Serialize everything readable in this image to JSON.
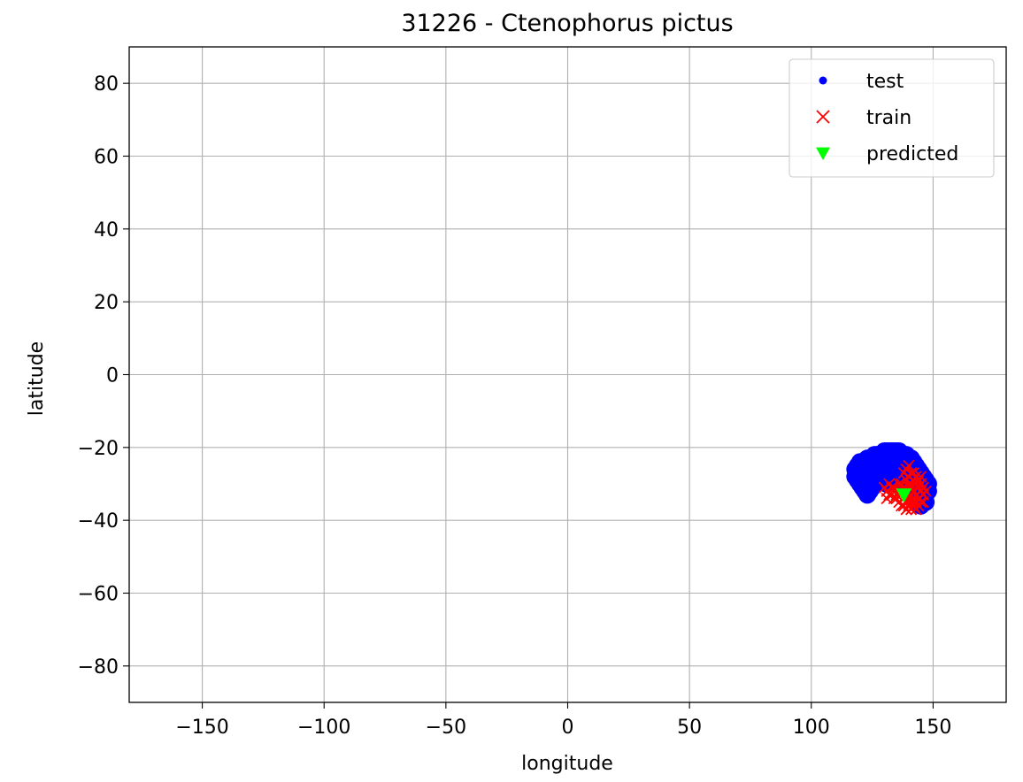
{
  "chart_data": {
    "type": "scatter",
    "title": "31226 - Ctenophorus pictus",
    "xlabel": "longitude",
    "ylabel": "latitude",
    "xlim": [
      -180,
      180
    ],
    "ylim": [
      -90,
      90
    ],
    "xticks": [
      -150,
      -100,
      -50,
      0,
      50,
      100,
      150
    ],
    "xtick_labels": [
      "−150",
      "−100",
      "−50",
      "0",
      "50",
      "100",
      "150"
    ],
    "yticks": [
      80,
      60,
      40,
      20,
      0,
      -20,
      -40,
      -60,
      -80
    ],
    "ytick_labels": [
      "80",
      "60",
      "40",
      "20",
      "0",
      "−20",
      "−40",
      "−60",
      "−80"
    ],
    "grid": true,
    "legend_position": "top-right",
    "series": [
      {
        "name": "test",
        "marker": "dot",
        "color": "#0000ff",
        "points": [
          [
            118,
            -26
          ],
          [
            118,
            -28
          ],
          [
            119,
            -25
          ],
          [
            119,
            -29
          ],
          [
            120,
            -24
          ],
          [
            120,
            -30
          ],
          [
            121,
            -24
          ],
          [
            121,
            -31
          ],
          [
            122,
            -24
          ],
          [
            122,
            -32
          ],
          [
            123,
            -23
          ],
          [
            123,
            -33
          ],
          [
            124,
            -23
          ],
          [
            124,
            -32
          ],
          [
            125,
            -23
          ],
          [
            125,
            -31
          ],
          [
            126,
            -22
          ],
          [
            126,
            -30
          ],
          [
            127,
            -22
          ],
          [
            127,
            -29
          ],
          [
            128,
            -22
          ],
          [
            128,
            -28
          ],
          [
            129,
            -22
          ],
          [
            129,
            -27
          ],
          [
            130,
            -21
          ],
          [
            130,
            -26
          ],
          [
            131,
            -21
          ],
          [
            131,
            -25
          ],
          [
            132,
            -21
          ],
          [
            132,
            -24
          ],
          [
            133,
            -21
          ],
          [
            133,
            -23
          ],
          [
            134,
            -21
          ],
          [
            134,
            -22
          ],
          [
            135,
            -21
          ],
          [
            135,
            -23
          ],
          [
            136,
            -21
          ],
          [
            136,
            -24
          ],
          [
            137,
            -22
          ],
          [
            137,
            -25
          ],
          [
            138,
            -22
          ],
          [
            138,
            -26
          ],
          [
            139,
            -22
          ],
          [
            139,
            -27
          ],
          [
            140,
            -23
          ],
          [
            140,
            -28
          ],
          [
            141,
            -23
          ],
          [
            141,
            -29
          ],
          [
            142,
            -24
          ],
          [
            142,
            -30
          ],
          [
            143,
            -25
          ],
          [
            143,
            -31
          ],
          [
            144,
            -26
          ],
          [
            144,
            -32
          ],
          [
            145,
            -27
          ],
          [
            145,
            -33
          ],
          [
            146,
            -28
          ],
          [
            146,
            -34
          ],
          [
            147,
            -29
          ],
          [
            147,
            -33
          ],
          [
            148,
            -30
          ],
          [
            148,
            -32
          ],
          [
            147,
            -35
          ],
          [
            145,
            -36
          ],
          [
            120,
            -27
          ],
          [
            122,
            -28
          ],
          [
            124,
            -27
          ],
          [
            126,
            -26
          ],
          [
            128,
            -25
          ],
          [
            130,
            -24
          ],
          [
            132,
            -27
          ],
          [
            134,
            -26
          ],
          [
            136,
            -27
          ],
          [
            138,
            -28
          ],
          [
            140,
            -26
          ],
          [
            142,
            -27
          ],
          [
            144,
            -29
          ],
          [
            125,
            -26
          ],
          [
            127,
            -25
          ],
          [
            129,
            -29
          ],
          [
            131,
            -30
          ],
          [
            133,
            -29
          ],
          [
            135,
            -30
          ],
          [
            137,
            -30
          ],
          [
            139,
            -31
          ],
          [
            141,
            -32
          ],
          [
            143,
            -33
          ],
          [
            121,
            -27
          ],
          [
            123,
            -29
          ],
          [
            125,
            -28
          ],
          [
            128,
            -23
          ],
          [
            132,
            -22
          ],
          [
            136,
            -22
          ],
          [
            140,
            -24
          ],
          [
            146,
            -31
          ],
          [
            119,
            -27
          ]
        ]
      },
      {
        "name": "train",
        "marker": "x",
        "color": "#ff0000",
        "points": [
          [
            130,
            -31
          ],
          [
            131,
            -32
          ],
          [
            132,
            -30
          ],
          [
            133,
            -33
          ],
          [
            134,
            -31
          ],
          [
            135,
            -34
          ],
          [
            136,
            -32
          ],
          [
            136,
            -35
          ],
          [
            137,
            -30
          ],
          [
            137,
            -33
          ],
          [
            138,
            -31
          ],
          [
            138,
            -34
          ],
          [
            138,
            -36
          ],
          [
            139,
            -29
          ],
          [
            139,
            -32
          ],
          [
            139,
            -35
          ],
          [
            140,
            -28
          ],
          [
            140,
            -31
          ],
          [
            140,
            -34
          ],
          [
            140,
            -36
          ],
          [
            141,
            -27
          ],
          [
            141,
            -30
          ],
          [
            141,
            -33
          ],
          [
            141,
            -35
          ],
          [
            142,
            -29
          ],
          [
            142,
            -32
          ],
          [
            142,
            -34
          ],
          [
            142,
            -36
          ],
          [
            143,
            -30
          ],
          [
            143,
            -33
          ],
          [
            143,
            -35
          ],
          [
            144,
            -29
          ],
          [
            144,
            -31
          ],
          [
            144,
            -34
          ],
          [
            145,
            -30
          ],
          [
            145,
            -32
          ],
          [
            145,
            -35
          ],
          [
            146,
            -31
          ],
          [
            146,
            -33
          ],
          [
            147,
            -32
          ],
          [
            139,
            -26
          ],
          [
            140,
            -25
          ],
          [
            138,
            -27
          ],
          [
            141,
            -37
          ],
          [
            139,
            -37
          ],
          [
            143,
            -37
          ],
          [
            135,
            -33
          ],
          [
            134,
            -34
          ],
          [
            132,
            -33
          ],
          [
            131,
            -34
          ],
          [
            133,
            -31
          ],
          [
            136,
            -30
          ],
          [
            137,
            -36
          ],
          [
            144,
            -36
          ],
          [
            146,
            -35
          ],
          [
            145,
            -28
          ],
          [
            143,
            -28
          ],
          [
            142,
            -27
          ],
          [
            140,
            -30
          ],
          [
            139,
            -33
          ],
          [
            138,
            -32
          ],
          [
            141,
            -31
          ]
        ]
      },
      {
        "name": "predicted",
        "marker": "triangle-down",
        "color": "#00ff00",
        "points": [
          [
            138,
            -33
          ]
        ]
      }
    ]
  }
}
